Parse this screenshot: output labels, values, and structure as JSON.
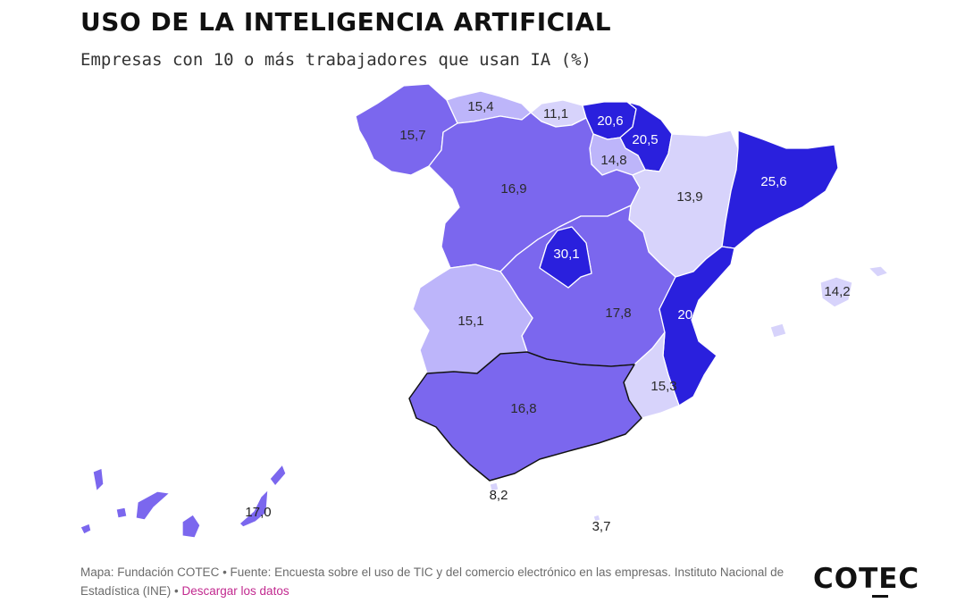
{
  "title": "USO DE LA INTELIGENCIA ARTIFICIAL",
  "subtitle": "Empresas con 10 o más trabajadores que usan IA (%)",
  "legend_colors": {
    "low": "#d7d3fb",
    "lowmid": "#bdb5fa",
    "mid": "#7b67ee",
    "high": "#2a20dd"
  },
  "regions": [
    {
      "id": "galicia",
      "value": "15,7",
      "color": "#7b67ee"
    },
    {
      "id": "asturias",
      "value": "15,4",
      "color": "#bdb5fa"
    },
    {
      "id": "cantabria",
      "value": "11,1",
      "color": "#d7d3fb"
    },
    {
      "id": "pais-vasco",
      "value": "20,6",
      "color": "#2a20dd"
    },
    {
      "id": "navarra",
      "value": "20,5",
      "color": "#2a20dd"
    },
    {
      "id": "la-rioja",
      "value": "14,8",
      "color": "#bdb5fa"
    },
    {
      "id": "castilla-y-leon",
      "value": "16,9",
      "color": "#7b67ee"
    },
    {
      "id": "aragon",
      "value": "13,9",
      "color": "#d7d3fb"
    },
    {
      "id": "cataluna",
      "value": "25,6",
      "color": "#2a20dd"
    },
    {
      "id": "madrid",
      "value": "30,1",
      "color": "#2a20dd"
    },
    {
      "id": "extremadura",
      "value": "15,1",
      "color": "#bdb5fa"
    },
    {
      "id": "castilla-la-mancha",
      "value": "17,8",
      "color": "#7b67ee"
    },
    {
      "id": "comunidad-valenciana",
      "value": "20,6",
      "color": "#2a20dd"
    },
    {
      "id": "murcia",
      "value": "15,3",
      "color": "#d7d3fb"
    },
    {
      "id": "andalucia",
      "value": "16,8",
      "color": "#7b67ee"
    },
    {
      "id": "baleares",
      "value": "14,2",
      "color": "#d7d3fb"
    },
    {
      "id": "canarias",
      "value": "17,0",
      "color": "#7b67ee"
    },
    {
      "id": "ceuta",
      "value": "8,2",
      "color": "#d7d3fb"
    },
    {
      "id": "melilla",
      "value": "3,7",
      "color": "#d7d3fb"
    }
  ],
  "footer": {
    "source": "Mapa: Fundación COTEC • Fuente: Encuesta sobre el uso de TIC y del comercio electrónico en las empresas. Instituto Nacional de Estadística (INE) • ",
    "link": "Descargar los datos"
  },
  "logo": "COTEC"
}
